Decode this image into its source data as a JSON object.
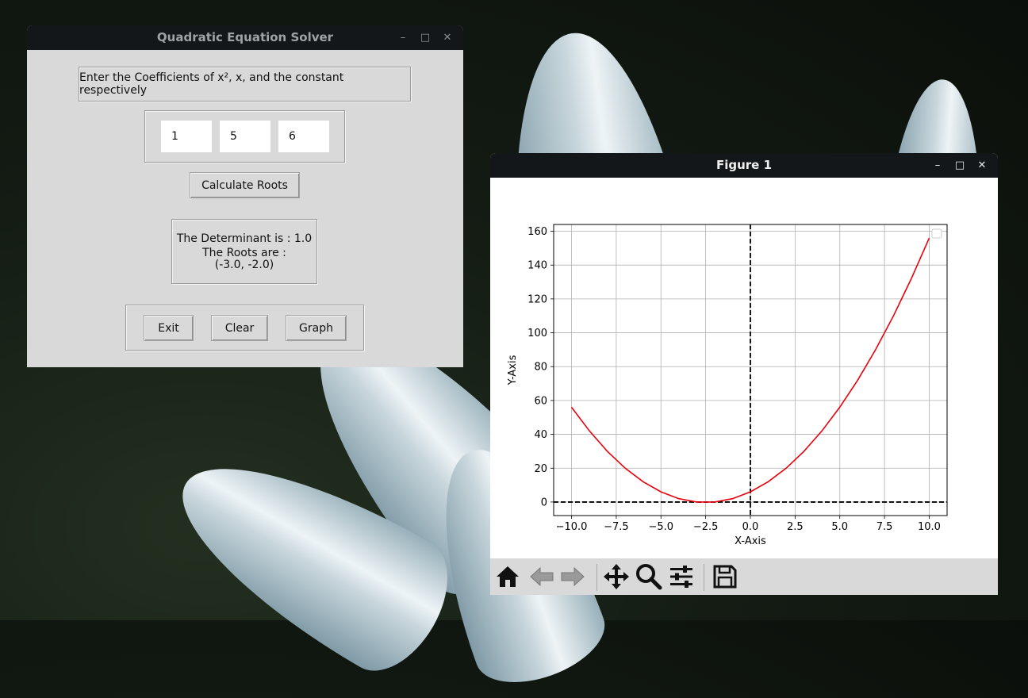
{
  "solver": {
    "title": "Quadratic Equation Solver",
    "instruction": "Enter the Coefficients of x², x, and the constant respectively",
    "coef_a": "1",
    "coef_b": "5",
    "coef_c": "6",
    "calculate_label": "Calculate Roots",
    "result_line1": "The Determinant is : 1.0",
    "result_line2": "The Roots are :",
    "result_line3": "(-3.0, -2.0)",
    "exit_label": "Exit",
    "clear_label": "Clear",
    "graph_label": "Graph"
  },
  "titlebar_controls": {
    "minimize": "–",
    "maximize": "□",
    "close": "✕"
  },
  "figure": {
    "title": "Figure 1",
    "toolbar": [
      "home-icon",
      "back-icon",
      "forward-icon",
      "pan-icon",
      "zoom-icon",
      "configure-subplots-icon",
      "save-icon"
    ]
  },
  "chart_data": {
    "type": "line",
    "xlabel": "X-Axis",
    "ylabel": "Y-Axis",
    "xlim": [
      -11,
      11
    ],
    "ylim": [
      -8,
      164
    ],
    "xticks": [
      -10,
      -7.5,
      -5,
      -2.5,
      0,
      2.5,
      5,
      7.5,
      10
    ],
    "xtick_labels": [
      "−10.0",
      "−7.5",
      "−5.0",
      "−2.5",
      "0.0",
      "2.5",
      "5.0",
      "7.5",
      "10.0"
    ],
    "yticks": [
      0,
      20,
      40,
      60,
      80,
      100,
      120,
      140,
      160
    ],
    "ytick_labels": [
      "0",
      "20",
      "40",
      "60",
      "80",
      "100",
      "120",
      "140",
      "160"
    ],
    "grid": true,
    "legend": "top-right (empty)",
    "reference_lines": [
      "x = 0 dashed black",
      "y = 0 dashed black"
    ],
    "series": [
      {
        "color": "#e8000b",
        "x": [
          -10,
          -9,
          -8,
          -7,
          -6,
          -5,
          -4,
          -3,
          -2,
          -1,
          0,
          1,
          2,
          3,
          4,
          5,
          6,
          7,
          8,
          9,
          10
        ],
        "values": [
          56,
          42,
          30,
          20,
          12,
          6,
          2,
          0,
          0,
          2,
          6,
          12,
          20,
          30,
          42,
          56,
          72,
          90,
          110,
          132,
          156
        ]
      }
    ],
    "colors": {
      "axis_lines": "#000000",
      "grid": "#b0b0b0",
      "curve": "#e8000b"
    }
  }
}
